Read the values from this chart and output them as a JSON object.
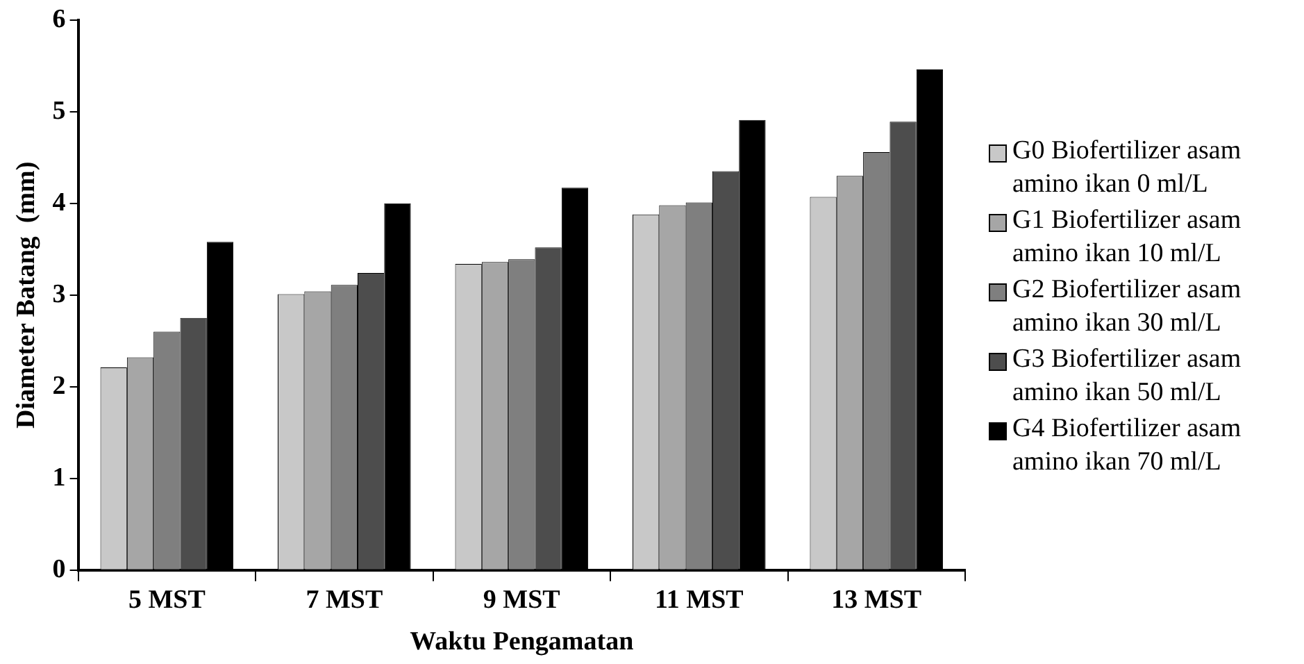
{
  "chart_data": {
    "type": "bar",
    "xlabel": "Waktu Pengamatan",
    "ylabel": "Diameter Batang  (mm)",
    "categories": [
      "5 MST",
      "7 MST",
      "9 MST",
      "11 MST",
      "13 MST"
    ],
    "series": [
      {
        "name": "G0 Biofertilizer asam amino ikan 0 ml/L",
        "color": "#c8c8c8",
        "values": [
          2.21,
          3.01,
          3.34,
          3.88,
          4.07
        ]
      },
      {
        "name": "G1 Biofertilizer asam amino ikan 10 ml/L",
        "color": "#a6a6a6",
        "values": [
          2.32,
          3.04,
          3.36,
          3.98,
          4.3
        ]
      },
      {
        "name": "G2 Biofertilizer asam amino ikan 30 ml/L",
        "color": "#7f7f7f",
        "values": [
          2.6,
          3.11,
          3.39,
          4.01,
          4.56
        ]
      },
      {
        "name": "G3 Biofertilizer asam amino ikan 50 ml/L",
        "color": "#4d4d4d",
        "values": [
          2.75,
          3.24,
          3.52,
          4.35,
          4.89
        ]
      },
      {
        "name": "G4 Biofertilizer asam amino ikan 70 ml/L",
        "color": "#000000",
        "values": [
          3.58,
          4.0,
          4.17,
          4.91,
          5.46
        ]
      }
    ],
    "ylim": [
      0,
      6
    ],
    "yticks": [
      0,
      1,
      2,
      3,
      4,
      5,
      6
    ],
    "grid": false,
    "legend": "right"
  }
}
